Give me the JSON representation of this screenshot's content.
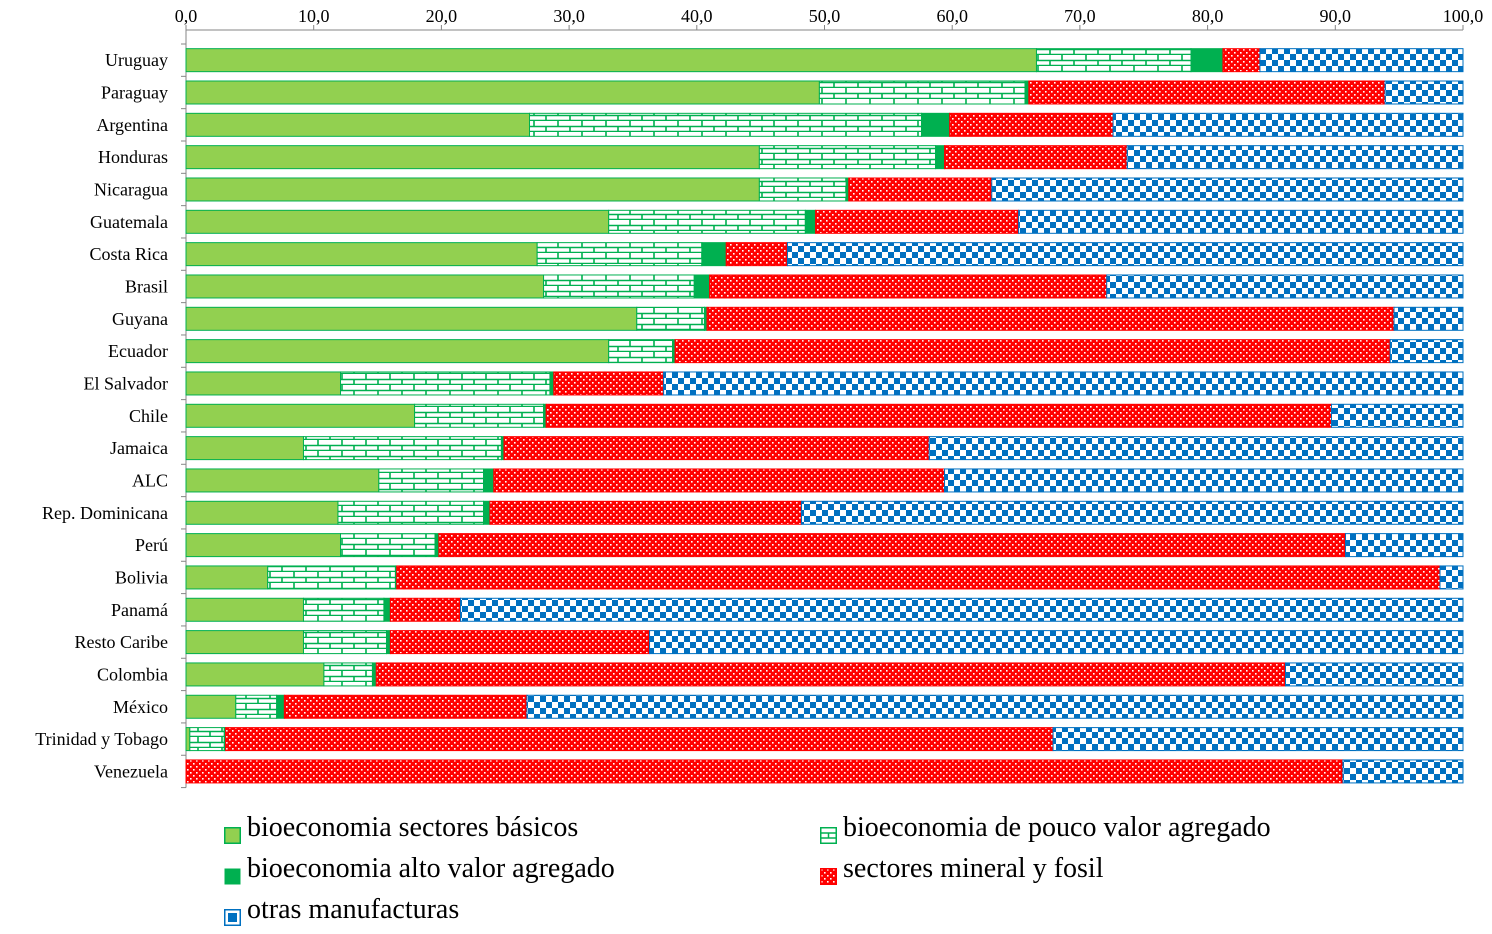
{
  "chart_data": {
    "type": "bar",
    "orientation": "horizontal",
    "stacked": true,
    "xlim": [
      0,
      100
    ],
    "xticks": [
      "0,0",
      "10,0",
      "20,0",
      "30,0",
      "40,0",
      "50,0",
      "60,0",
      "70,0",
      "80,0",
      "90,0",
      "100,0"
    ],
    "xaxis_position": "top",
    "legend_position": "bottom",
    "grid": false,
    "categories": [
      "Uruguay",
      "Paraguay",
      "Argentina",
      "Honduras",
      "Nicaragua",
      "Guatemala",
      "Costa Rica",
      "Brasil",
      "Guyana",
      "Ecuador",
      "El Salvador",
      "Chile",
      "Jamaica",
      "ALC",
      "Rep. Dominicana",
      "Perú",
      "Bolivia",
      "Panamá",
      "Resto Caribe",
      "Colombia",
      "México",
      "Trinidad y Tobago",
      "Venezuela"
    ],
    "series": [
      {
        "name": "bioeconomia sectores básicos",
        "color": "#92d050",
        "pattern": "solid",
        "values": [
          66.6,
          49.6,
          26.9,
          44.9,
          44.9,
          33.1,
          27.5,
          28.0,
          35.3,
          33.1,
          12.1,
          17.9,
          9.2,
          15.1,
          11.9,
          12.1,
          6.4,
          9.2,
          9.2,
          10.8,
          3.9,
          0.3,
          0.0
        ]
      },
      {
        "name": "bioeconomia de pouco valor agregado",
        "color": "#00b050",
        "pattern": "brick",
        "values": [
          12.1,
          16.1,
          30.7,
          13.8,
          6.8,
          15.4,
          12.9,
          11.8,
          5.3,
          5.0,
          16.4,
          10.1,
          15.5,
          8.2,
          11.4,
          7.4,
          10.0,
          6.3,
          6.5,
          3.8,
          3.2,
          2.7,
          0.0
        ]
      },
      {
        "name": "bioeconomia alto valor agregado",
        "color": "#00b050",
        "pattern": "solid",
        "values": [
          2.5,
          0.3,
          2.2,
          0.7,
          0.2,
          0.8,
          1.9,
          1.2,
          0.2,
          0.2,
          0.3,
          0.2,
          0.2,
          0.8,
          0.5,
          0.3,
          0.1,
          0.5,
          0.3,
          0.3,
          0.6,
          0.1,
          0.0
        ]
      },
      {
        "name": "sectores mineral y fosil",
        "color": "#ff0000",
        "pattern": "dots",
        "values": [
          2.9,
          27.9,
          12.8,
          14.3,
          11.2,
          15.9,
          4.8,
          31.1,
          53.8,
          56.0,
          8.6,
          61.5,
          33.3,
          35.3,
          24.4,
          71.0,
          81.7,
          5.5,
          20.3,
          71.2,
          19.0,
          64.8,
          90.6
        ]
      },
      {
        "name": "otras manufacturas",
        "color": "#0070c0",
        "pattern": "checker",
        "values": [
          15.9,
          6.1,
          27.4,
          26.3,
          36.9,
          34.8,
          52.9,
          27.9,
          5.4,
          5.7,
          62.6,
          10.3,
          41.8,
          40.6,
          51.8,
          9.2,
          1.8,
          78.5,
          63.7,
          13.9,
          73.3,
          32.1,
          9.4
        ]
      }
    ]
  }
}
